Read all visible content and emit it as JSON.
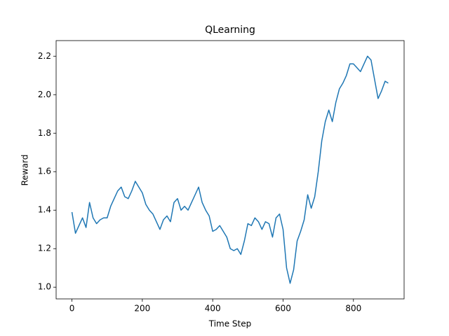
{
  "chart_data": {
    "type": "line",
    "title": "QLearning",
    "x_label": "Time Step",
    "y_label": "Reward",
    "color": "#1f77b4",
    "x": [
      0,
      10,
      20,
      30,
      40,
      50,
      60,
      70,
      80,
      90,
      100,
      110,
      120,
      130,
      140,
      150,
      160,
      170,
      180,
      190,
      200,
      210,
      220,
      230,
      240,
      250,
      260,
      270,
      280,
      290,
      300,
      310,
      320,
      330,
      340,
      350,
      360,
      370,
      380,
      390,
      400,
      410,
      420,
      430,
      440,
      450,
      460,
      470,
      480,
      490,
      500,
      510,
      520,
      530,
      540,
      550,
      560,
      570,
      580,
      590,
      600,
      610,
      620,
      630,
      640,
      650,
      660,
      670,
      680,
      690,
      700,
      710,
      720,
      730,
      740,
      750,
      760,
      770,
      780,
      790,
      800,
      810,
      820,
      830,
      840,
      850,
      860,
      870,
      880,
      890,
      899
    ],
    "values": [
      1.39,
      1.28,
      1.32,
      1.36,
      1.31,
      1.44,
      1.36,
      1.33,
      1.35,
      1.36,
      1.36,
      1.42,
      1.46,
      1.5,
      1.52,
      1.47,
      1.46,
      1.5,
      1.55,
      1.52,
      1.49,
      1.43,
      1.4,
      1.38,
      1.34,
      1.3,
      1.35,
      1.37,
      1.34,
      1.44,
      1.46,
      1.4,
      1.42,
      1.4,
      1.44,
      1.48,
      1.52,
      1.44,
      1.4,
      1.37,
      1.29,
      1.3,
      1.32,
      1.29,
      1.26,
      1.2,
      1.19,
      1.2,
      1.17,
      1.24,
      1.33,
      1.32,
      1.36,
      1.34,
      1.3,
      1.34,
      1.33,
      1.26,
      1.36,
      1.38,
      1.3,
      1.1,
      1.02,
      1.09,
      1.24,
      1.29,
      1.35,
      1.48,
      1.41,
      1.47,
      1.6,
      1.76,
      1.86,
      1.92,
      1.86,
      1.96,
      2.03,
      2.06,
      2.1,
      2.16,
      2.16,
      2.14,
      2.12,
      2.16,
      2.2,
      2.18,
      2.08,
      1.98,
      2.02,
      2.07,
      2.06
    ],
    "xlim": [
      -45,
      944
    ],
    "ylim": [
      0.939,
      2.281
    ],
    "xticks": [
      0,
      200,
      400,
      600,
      800
    ],
    "yticks": [
      {
        "value": 1.0,
        "label": "1.0"
      },
      1.2,
      1.4,
      1.6,
      1.8,
      {
        "value": 2.0,
        "label": "2.0"
      },
      2.2
    ]
  }
}
